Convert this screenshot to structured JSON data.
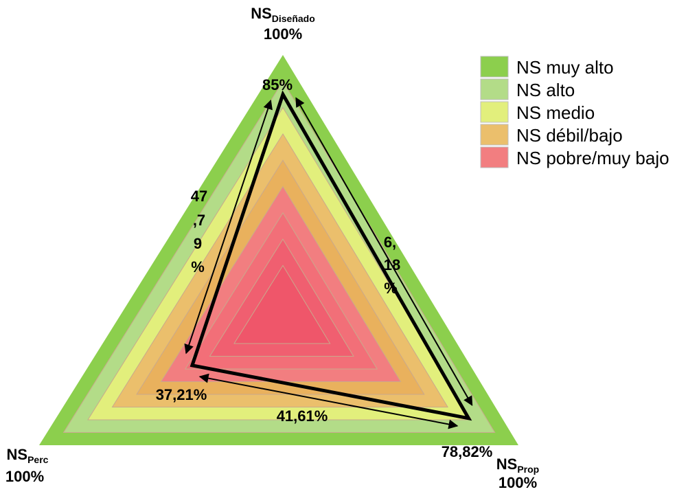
{
  "vertices": {
    "top": {
      "main": "NS",
      "sub": "Diseñado",
      "pct": "100%"
    },
    "left": {
      "main": "NS",
      "sub": "Perc",
      "pct": "100%"
    },
    "right": {
      "main": "NS",
      "sub": "Prop",
      "pct": "100%"
    }
  },
  "point_labels": {
    "top": "85%",
    "left": "37,21%",
    "right": "78,82%"
  },
  "edge_labels": {
    "left_edge": [
      "47",
      ",7",
      "9",
      "%"
    ],
    "right_edge": [
      "6,",
      "18",
      "%"
    ],
    "bottom_edge": "41,61%"
  },
  "legend": [
    {
      "label": "NS muy alto",
      "color": "#8ccf4d"
    },
    {
      "label": "NS alto",
      "color": "#b3dc88"
    },
    {
      "label": "NS medio",
      "color": "#e2ef7c"
    },
    {
      "label": "NS débil/bajo",
      "color": "#ebbf6c"
    },
    {
      "label": "NS pobre/muy bajo",
      "color": "#f27e80"
    }
  ],
  "bands": [
    {
      "level": 1.0,
      "color": "#8ccf4d"
    },
    {
      "level": 0.9,
      "color": "#b3dc88"
    },
    {
      "level": 0.8,
      "color": "#e2ef7c"
    },
    {
      "level": 0.7,
      "color": "#ebbf6c"
    },
    {
      "level": 0.6,
      "color": "#e9b15d"
    },
    {
      "level": 0.5,
      "color": "#f27e80"
    },
    {
      "level": 0.4,
      "color": "#f26f78"
    },
    {
      "level": 0.3,
      "color": "#f05f70"
    },
    {
      "level": 0.2,
      "color": "#ef566a"
    }
  ],
  "chart_data": {
    "type": "radar",
    "axes": [
      "NS Diseñado",
      "NS Prop",
      "NS Perc"
    ],
    "max": 100,
    "values": [
      85,
      78.82,
      37.21
    ]
  }
}
